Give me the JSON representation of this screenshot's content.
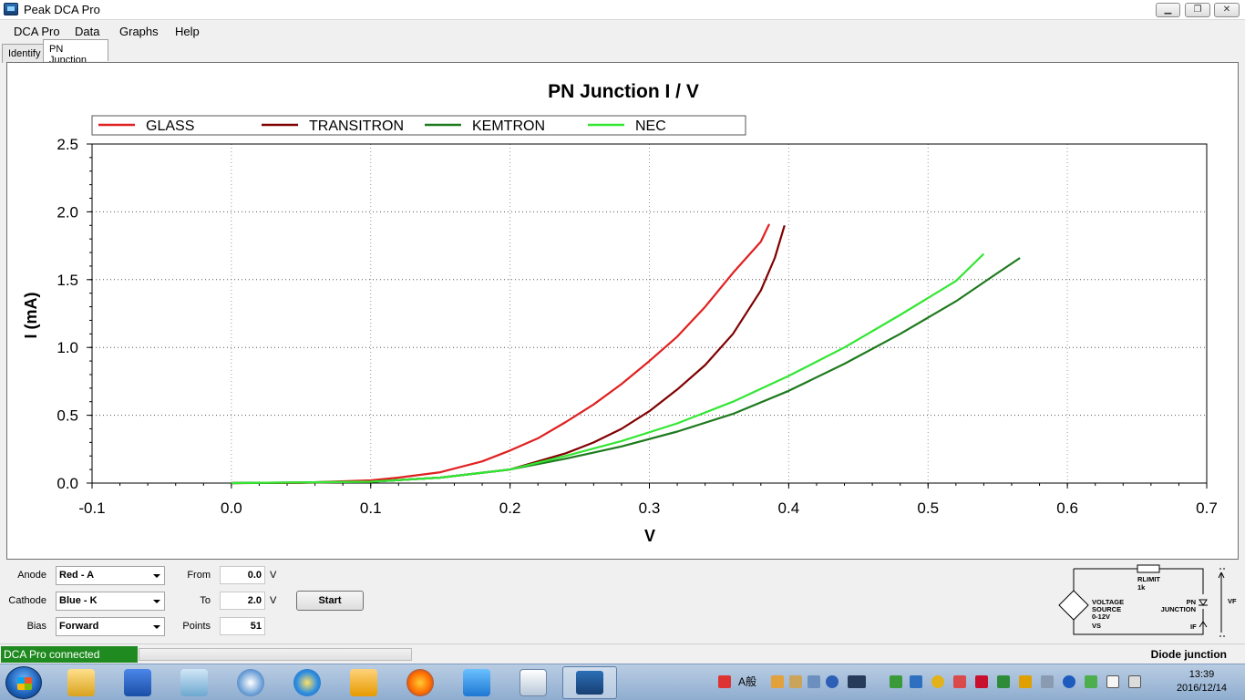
{
  "window": {
    "title": "Peak DCA Pro",
    "buttons": {
      "minimize": "▁",
      "restore": "❐",
      "close": "✕"
    }
  },
  "menu": [
    "DCA Pro",
    "Data",
    "Graphs",
    "Help"
  ],
  "tabs": [
    "Identify",
    "PN Junction"
  ],
  "chart_data": {
    "type": "line",
    "title": "PN Junction I / V",
    "xlabel": "V",
    "ylabel": "I (mA)",
    "xlim": [
      -0.1,
      0.7
    ],
    "ylim": [
      0.0,
      2.5
    ],
    "x_ticks": [
      "-0.1",
      "0.0",
      "0.1",
      "0.2",
      "0.3",
      "0.4",
      "0.5",
      "0.6",
      "0.7"
    ],
    "y_ticks": [
      "0.0",
      "0.5",
      "1.0",
      "1.5",
      "2.0",
      "2.5"
    ],
    "grid": true,
    "legend_position": "top",
    "series": [
      {
        "name": "GLASS",
        "color": "#e02020",
        "x": [
          0.0,
          0.05,
          0.1,
          0.12,
          0.15,
          0.18,
          0.2,
          0.22,
          0.24,
          0.26,
          0.28,
          0.3,
          0.32,
          0.34,
          0.36,
          0.38,
          0.386
        ],
        "y": [
          0.0,
          0.003,
          0.02,
          0.04,
          0.08,
          0.16,
          0.24,
          0.33,
          0.45,
          0.58,
          0.73,
          0.9,
          1.08,
          1.3,
          1.55,
          1.78,
          1.91
        ]
      },
      {
        "name": "TRANSITRON",
        "color": "#800000",
        "x": [
          0.0,
          0.05,
          0.1,
          0.15,
          0.2,
          0.22,
          0.24,
          0.26,
          0.28,
          0.3,
          0.32,
          0.34,
          0.36,
          0.38,
          0.39,
          0.397
        ],
        "y": [
          0.0,
          0.002,
          0.01,
          0.04,
          0.1,
          0.16,
          0.22,
          0.3,
          0.4,
          0.53,
          0.69,
          0.87,
          1.1,
          1.42,
          1.66,
          1.9
        ]
      },
      {
        "name": "KEMTRON",
        "color": "#1e7a1e",
        "x": [
          0.0,
          0.1,
          0.15,
          0.2,
          0.24,
          0.28,
          0.32,
          0.36,
          0.4,
          0.44,
          0.48,
          0.52,
          0.55,
          0.566
        ],
        "y": [
          0.0,
          0.01,
          0.04,
          0.1,
          0.18,
          0.27,
          0.38,
          0.51,
          0.68,
          0.88,
          1.1,
          1.34,
          1.55,
          1.66
        ]
      },
      {
        "name": "NEC",
        "color": "#33e633",
        "x": [
          0.0,
          0.1,
          0.15,
          0.2,
          0.24,
          0.28,
          0.32,
          0.36,
          0.4,
          0.44,
          0.48,
          0.52,
          0.54
        ],
        "y": [
          0.0,
          0.01,
          0.04,
          0.1,
          0.2,
          0.31,
          0.44,
          0.6,
          0.79,
          1.0,
          1.24,
          1.49,
          1.69
        ]
      }
    ]
  },
  "controls": {
    "anode": {
      "label": "Anode",
      "value": "Red - A"
    },
    "cathode": {
      "label": "Cathode",
      "value": "Blue - K"
    },
    "bias": {
      "label": "Bias",
      "value": "Forward"
    },
    "from": {
      "label": "From",
      "value": "0.0",
      "unit": "V"
    },
    "to": {
      "label": "To",
      "value": "2.0",
      "unit": "V"
    },
    "points": {
      "label": "Points",
      "value": "51"
    },
    "start_label": "Start"
  },
  "circuit": {
    "rlimit": "RLIMIT",
    "rlimit_value": "1k",
    "source_line1": "VOLTAGE",
    "source_line2": "SOURCE",
    "source_line3": "0-12V",
    "source_vs": "VS",
    "junction_line1": "PN",
    "junction_line2": "JUNCTION",
    "vf": "VF",
    "if": "IF"
  },
  "status": {
    "connection": "DCA Pro connected",
    "connection_color": "#1f8a1f",
    "right_text": "Diode junction"
  },
  "taskbar": {
    "time": "13:39",
    "date": "2016/12/14",
    "ime": "A般"
  }
}
